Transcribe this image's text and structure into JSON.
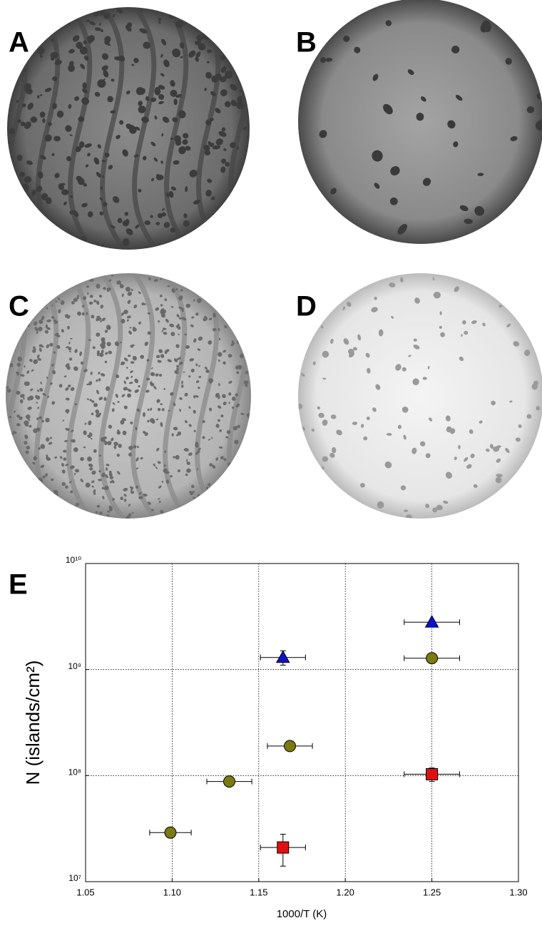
{
  "panels": [
    "A",
    "B",
    "C",
    "D"
  ],
  "chart_data": {
    "type": "scatter",
    "panel_label": "E",
    "x_label": "1000/T (K)",
    "y_label": "N (islands/cm²)",
    "xlim": [
      1.05,
      1.3
    ],
    "xticks": [
      1.05,
      {
        "value": 1.1,
        "label": "1.10"
      },
      1.15,
      {
        "value": 1.2,
        "label": "1.20"
      },
      1.25,
      {
        "value": 1.3,
        "label": "1.30"
      }
    ],
    "ylim": [
      10000000,
      10000000000
    ],
    "log_y": true,
    "yticks": [
      {
        "value": 10000000,
        "label": "10⁷"
      },
      {
        "value": 100000000,
        "label": "10⁸"
      },
      {
        "value": 1000000000,
        "label": "10⁹"
      },
      {
        "value": 10000000000,
        "label": "10¹⁰"
      }
    ],
    "grid": true,
    "series": [
      {
        "color": "#7a7a10",
        "marker": "circle",
        "x": [
          1.099,
          1.133,
          1.168,
          1.25
        ],
        "values": [
          29000000,
          88000000,
          190000000,
          1280000000
        ],
        "xerr": [
          0.012,
          0.013,
          0.013,
          0.016
        ],
        "yerr": [
          3000000,
          5000000,
          10000000,
          60000000
        ]
      },
      {
        "color": "#1010d0",
        "marker": "triangle",
        "x": [
          1.164,
          1.25
        ],
        "values": [
          1300000000,
          2800000000
        ],
        "xerr": [
          0.013,
          0.016
        ],
        "yerr": [
          200000000,
          100000000
        ]
      },
      {
        "color": "#e01010",
        "marker": "square",
        "x": [
          1.164,
          1.25
        ],
        "values": [
          21000000,
          103000000
        ],
        "xerr": [
          0.013,
          0.016
        ],
        "yerr": [
          7000000,
          15000000
        ]
      }
    ]
  }
}
